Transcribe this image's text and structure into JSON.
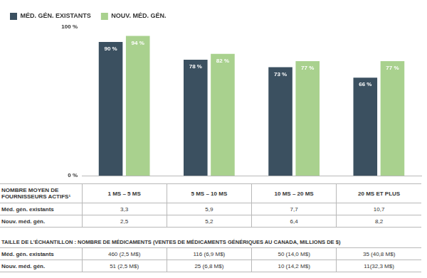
{
  "chart_data": {
    "type": "bar",
    "categories": [
      "1 MS – 5 MS",
      "5 MS – 10 MS",
      "10 MS – 20 MS",
      "20 MS ET PLUS"
    ],
    "series": [
      {
        "name": "MÉD. GÉN. EXISTANTS",
        "color": "#3b5060",
        "values": [
          90,
          78,
          73,
          66
        ],
        "value_labels": [
          "90 %",
          "78 %",
          "73 %",
          "66 %"
        ]
      },
      {
        "name": "NOUV. MÉD. GÉN.",
        "color": "#a9d18e",
        "values": [
          94,
          82,
          77,
          77
        ],
        "value_labels": [
          "94 %",
          "82 %",
          "77 %",
          "77 %"
        ]
      }
    ],
    "ylim": [
      0,
      100
    ],
    "yticks": [
      {
        "value": 0,
        "label": "0 %"
      },
      {
        "value": 100,
        "label": "100 %"
      }
    ],
    "grid": false,
    "legend": "top",
    "data_labels": true,
    "tick_labels": "y"
  },
  "table": {
    "header": "NOMBRE MOYEN DE FOURNISSEURS ACTIFS¹",
    "rows": [
      {
        "label": "Méd. gén. existants",
        "cells": [
          "3,3",
          "5,9",
          "7,7",
          "10,7"
        ]
      },
      {
        "label": "Nouv. méd. gén.",
        "cells": [
          "2,5",
          "5,2",
          "6,4",
          "8,2"
        ]
      }
    ]
  },
  "sample_table": {
    "title": "TAILLE DE L'ÉCHANTILLON : NOMBRE DE MÉDICAMENTS (VENTES DE MÉDICAMENTS GÉNÉRIQUES AU CANADA, MILLIONS DE $)",
    "rows": [
      {
        "label": "Méd. gén. existants",
        "cells": [
          "460 (2,5 M$)",
          "116 (6,9 M$)",
          "50 (14,0 M$)",
          "35 (40,8 M$)"
        ]
      },
      {
        "label": "Nouv. méd. gén.",
        "cells": [
          "51 (2,5 M$)",
          "25 (6,8 M$)",
          "10 (14,2 M$)",
          "11(32,3 M$)"
        ]
      }
    ]
  }
}
